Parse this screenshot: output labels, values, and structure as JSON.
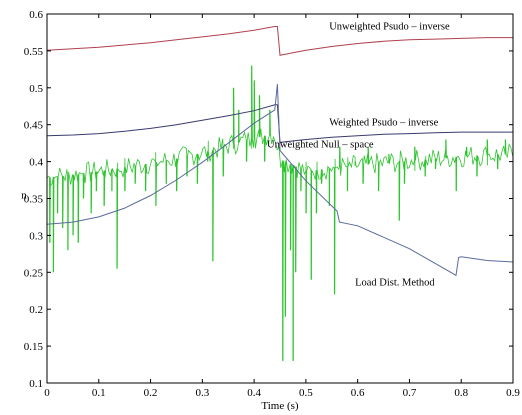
{
  "chart_data": {
    "type": "line",
    "title": "",
    "xlabel": "Time (s)",
    "ylabel": "n",
    "xlim": [
      0,
      0.9
    ],
    "ylim": [
      0.1,
      0.6
    ],
    "grid": false,
    "x_ticks": [
      "0",
      "0.1",
      "0.2",
      "0.3",
      "0.4",
      "0.5",
      "0.6",
      "0.7",
      "0.8",
      "0.9"
    ],
    "y_ticks": [
      "0.1",
      "0.15",
      "0.2",
      "0.25",
      "0.3",
      "0.35",
      "0.4",
      "0.45",
      "0.5",
      "0.55",
      "0.6"
    ],
    "x_tick_values": [
      0,
      0.1,
      0.2,
      0.3,
      0.4,
      0.5,
      0.6,
      0.7,
      0.8,
      0.9
    ],
    "y_tick_values": [
      0.1,
      0.15,
      0.2,
      0.25,
      0.3,
      0.35,
      0.4,
      0.45,
      0.5,
      0.55,
      0.6
    ],
    "series": [
      {
        "color": "#b04050",
        "x": [
          0,
          0.05,
          0.1,
          0.15,
          0.2,
          0.25,
          0.3,
          0.35,
          0.4,
          0.44,
          0.445,
          0.45,
          0.5,
          0.55,
          0.6,
          0.65,
          0.7,
          0.75,
          0.8,
          0.85,
          0.9
        ],
        "y": [
          0.551,
          0.553,
          0.555,
          0.558,
          0.561,
          0.565,
          0.569,
          0.573,
          0.578,
          0.583,
          0.583,
          0.544,
          0.551,
          0.556,
          0.56,
          0.563,
          0.565,
          0.566,
          0.567,
          0.568,
          0.568
        ]
      },
      {
        "color": "#3a3a6e",
        "x": [
          0,
          0.05,
          0.1,
          0.15,
          0.2,
          0.25,
          0.3,
          0.35,
          0.4,
          0.44,
          0.445,
          0.45,
          0.5,
          0.55,
          0.6,
          0.65,
          0.7,
          0.75,
          0.8,
          0.85,
          0.9
        ],
        "y": [
          0.435,
          0.436,
          0.438,
          0.441,
          0.445,
          0.45,
          0.456,
          0.462,
          0.469,
          0.477,
          0.477,
          0.426,
          0.43,
          0.433,
          0.435,
          0.437,
          0.438,
          0.439,
          0.44,
          0.44,
          0.44
        ]
      },
      {
        "color": "#5a6a9a",
        "x": [
          0,
          0.05,
          0.1,
          0.15,
          0.2,
          0.25,
          0.3,
          0.35,
          0.4,
          0.44,
          0.445,
          0.45,
          0.5,
          0.56,
          0.565,
          0.6,
          0.7,
          0.79,
          0.795,
          0.8,
          0.85,
          0.9
        ],
        "y": [
          0.315,
          0.318,
          0.325,
          0.337,
          0.354,
          0.375,
          0.399,
          0.425,
          0.452,
          0.47,
          0.505,
          0.415,
          0.374,
          0.333,
          0.318,
          0.313,
          0.282,
          0.246,
          0.27,
          0.271,
          0.266,
          0.264
        ]
      },
      {
        "color": "#2fc42f",
        "base_x": [
          0,
          0.05,
          0.1,
          0.15,
          0.2,
          0.25,
          0.3,
          0.35,
          0.4,
          0.44,
          0.45,
          0.5,
          0.55,
          0.6,
          0.65,
          0.7,
          0.75,
          0.8,
          0.85,
          0.9
        ],
        "base_y": [
          0.378,
          0.382,
          0.387,
          0.392,
          0.398,
          0.404,
          0.412,
          0.422,
          0.432,
          0.438,
          0.403,
          0.387,
          0.391,
          0.395,
          0.398,
          0.401,
          0.404,
          0.407,
          0.409,
          0.41
        ],
        "spikes": [
          {
            "x": 0.005,
            "y": 0.29
          },
          {
            "x": 0.012,
            "y": 0.25
          },
          {
            "x": 0.02,
            "y": 0.33
          },
          {
            "x": 0.03,
            "y": 0.31
          },
          {
            "x": 0.04,
            "y": 0.28
          },
          {
            "x": 0.05,
            "y": 0.3
          },
          {
            "x": 0.06,
            "y": 0.29
          },
          {
            "x": 0.07,
            "y": 0.35
          },
          {
            "x": 0.085,
            "y": 0.33
          },
          {
            "x": 0.095,
            "y": 0.36
          },
          {
            "x": 0.11,
            "y": 0.34
          },
          {
            "x": 0.125,
            "y": 0.36
          },
          {
            "x": 0.135,
            "y": 0.255
          },
          {
            "x": 0.15,
            "y": 0.36
          },
          {
            "x": 0.17,
            "y": 0.37
          },
          {
            "x": 0.19,
            "y": 0.36
          },
          {
            "x": 0.21,
            "y": 0.34
          },
          {
            "x": 0.23,
            "y": 0.37
          },
          {
            "x": 0.25,
            "y": 0.36
          },
          {
            "x": 0.27,
            "y": 0.38
          },
          {
            "x": 0.29,
            "y": 0.37
          },
          {
            "x": 0.31,
            "y": 0.4
          },
          {
            "x": 0.32,
            "y": 0.265
          },
          {
            "x": 0.34,
            "y": 0.38
          },
          {
            "x": 0.36,
            "y": 0.5
          },
          {
            "x": 0.37,
            "y": 0.47
          },
          {
            "x": 0.385,
            "y": 0.4
          },
          {
            "x": 0.395,
            "y": 0.53
          },
          {
            "x": 0.4,
            "y": 0.51
          },
          {
            "x": 0.41,
            "y": 0.49
          },
          {
            "x": 0.42,
            "y": 0.4
          },
          {
            "x": 0.43,
            "y": 0.47
          },
          {
            "x": 0.455,
            "y": 0.13
          },
          {
            "x": 0.46,
            "y": 0.19
          },
          {
            "x": 0.47,
            "y": 0.28
          },
          {
            "x": 0.475,
            "y": 0.13
          },
          {
            "x": 0.48,
            "y": 0.25
          },
          {
            "x": 0.49,
            "y": 0.36
          },
          {
            "x": 0.5,
            "y": 0.33
          },
          {
            "x": 0.51,
            "y": 0.24
          },
          {
            "x": 0.52,
            "y": 0.33
          },
          {
            "x": 0.53,
            "y": 0.37
          },
          {
            "x": 0.545,
            "y": 0.34
          },
          {
            "x": 0.555,
            "y": 0.22
          },
          {
            "x": 0.565,
            "y": 0.42
          },
          {
            "x": 0.58,
            "y": 0.36
          },
          {
            "x": 0.595,
            "y": 0.4
          },
          {
            "x": 0.61,
            "y": 0.37
          },
          {
            "x": 0.62,
            "y": 0.42
          },
          {
            "x": 0.64,
            "y": 0.36
          },
          {
            "x": 0.66,
            "y": 0.41
          },
          {
            "x": 0.68,
            "y": 0.32
          },
          {
            "x": 0.69,
            "y": 0.37
          },
          {
            "x": 0.71,
            "y": 0.42
          },
          {
            "x": 0.73,
            "y": 0.38
          },
          {
            "x": 0.75,
            "y": 0.39
          },
          {
            "x": 0.77,
            "y": 0.43
          },
          {
            "x": 0.79,
            "y": 0.36
          },
          {
            "x": 0.81,
            "y": 0.42
          },
          {
            "x": 0.83,
            "y": 0.38
          },
          {
            "x": 0.85,
            "y": 0.43
          },
          {
            "x": 0.87,
            "y": 0.39
          },
          {
            "x": 0.885,
            "y": 0.43
          }
        ]
      }
    ],
    "annotations": [
      {
        "text": "Unweighted Psudo – inverse",
        "x": 0.545,
        "y": 0.579
      },
      {
        "text": "Weighted Psudo – inverse",
        "x": 0.545,
        "y": 0.449
      },
      {
        "text": "Unweighted Null – space",
        "x": 0.425,
        "y": 0.419
      },
      {
        "text": "Load Dist. Method",
        "x": 0.595,
        "y": 0.232
      }
    ]
  }
}
